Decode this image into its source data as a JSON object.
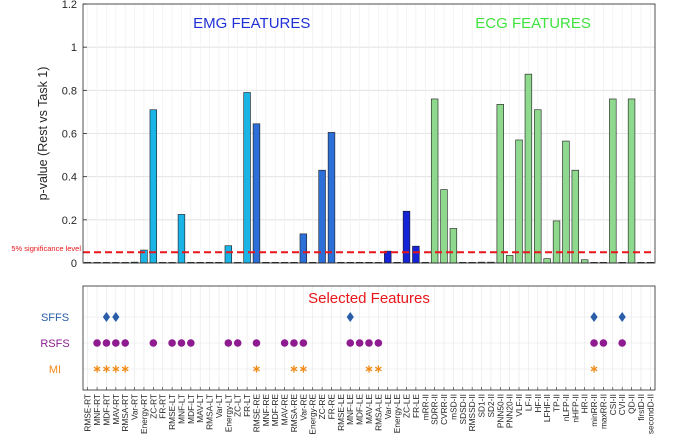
{
  "chart_data": {
    "type": "bar",
    "ylabel": "p-value (Rest vs Task 1)",
    "ylim": [
      0,
      1.2
    ],
    "yticks": [
      0,
      0.2,
      0.4,
      0.6,
      0.8,
      1,
      1.2
    ],
    "grid": true,
    "threshold": {
      "value": 0.05,
      "label": "5% significance level",
      "color": "#e8161b"
    },
    "group_labels": [
      {
        "text": "EMG FEATURES",
        "color": "#1f30d6"
      },
      {
        "text": "ECG FEATURES",
        "color": "#3fe23f"
      }
    ],
    "categories": [
      "RMSE-RT",
      "MNF-RT",
      "MDF-RT",
      "MAV-RT",
      "RMSA-RT",
      "Var-RT",
      "Energy-RT",
      "ZC-RT",
      "FR-RT",
      "RMSE-LT",
      "MNF-LT",
      "MDF-LT",
      "MAV-LT",
      "RMSA-LT",
      "Var-LT",
      "Energy-LT",
      "ZC-LT",
      "FR-LT",
      "RMSE-RE",
      "MNF-RE",
      "MDF-RE",
      "MAV-RE",
      "RMSA-RE",
      "Var-RE",
      "Energy-RE",
      "ZC-RE",
      "FR-RE",
      "RMSE-LE",
      "MNF-LE",
      "MDF-LE",
      "MAV-LE",
      "RMSA-LE",
      "Var-LE",
      "Energy-LE",
      "ZC-LE",
      "FR-LE",
      "mRR-II",
      "SDRR-II",
      "CVRR-II",
      "mSD-II",
      "SDSD-II",
      "RMSSD-II",
      "SD1-II",
      "SD2-II",
      "PNN50-II",
      "PNN20-II",
      "VLF-II",
      "LF-II",
      "HF-II",
      "LFHF-II",
      "TP-II",
      "nLFP-II",
      "nHFP-II",
      "HR-II",
      "minRR-II",
      "maxRR-II",
      "CSI-II",
      "CVI-II",
      "QD-II",
      "firstD-II",
      "secondD-II"
    ],
    "values": [
      0.001,
      0.001,
      0.001,
      0.001,
      0.001,
      0.004,
      0.06,
      0.71,
      0.002,
      0.001,
      0.225,
      0.003,
      0.003,
      0.003,
      0.003,
      0.08,
      0.001,
      0.79,
      0.645,
      0.003,
      0.003,
      0.003,
      0.003,
      0.135,
      0.003,
      0.43,
      0.605,
      0.003,
      0.003,
      0.003,
      0.003,
      0.002,
      0.055,
      0.003,
      0.24,
      0.078,
      0.003,
      0.76,
      0.34,
      0.16,
      0.003,
      0.003,
      0.004,
      0.004,
      0.735,
      0.035,
      0.57,
      0.875,
      0.71,
      0.02,
      0.195,
      0.565,
      0.43,
      0.015,
      0.003,
      0.003,
      0.76,
      0.003,
      0.76,
      0.003,
      0.003
    ],
    "bar_colors": [
      "#1bb4e6",
      "#1bb4e6",
      "#1bb4e6",
      "#1bb4e6",
      "#1bb4e6",
      "#1bb4e6",
      "#1bb4e6",
      "#1bb4e6",
      "#1bb4e6",
      "#1bb4e6",
      "#1bb4e6",
      "#1bb4e6",
      "#1bb4e6",
      "#1bb4e6",
      "#1bb4e6",
      "#1bb4e6",
      "#1bb4e6",
      "#1bb4e6",
      "#2d6fd9",
      "#2d6fd9",
      "#2d6fd9",
      "#2d6fd9",
      "#2d6fd9",
      "#2d6fd9",
      "#2d6fd9",
      "#2d6fd9",
      "#2d6fd9",
      "#1424d6",
      "#1424d6",
      "#1424d6",
      "#1424d6",
      "#1424d6",
      "#1424d6",
      "#1424d6",
      "#1424d6",
      "#1424d6",
      "#8ed98e",
      "#8ed98e",
      "#8ed98e",
      "#8ed98e",
      "#8ed98e",
      "#8ed98e",
      "#8ed98e",
      "#8ed98e",
      "#8ed98e",
      "#8ed98e",
      "#8ed98e",
      "#8ed98e",
      "#8ed98e",
      "#8ed98e",
      "#8ed98e",
      "#8ed98e",
      "#8ed98e",
      "#8ed98e",
      "#8ed98e",
      "#8ed98e",
      "#8ed98e",
      "#8ed98e",
      "#8ed98e",
      "#8ed98e",
      "#8ed98e"
    ],
    "selection": {
      "title": "Selected Features",
      "title_color": "#e8161b",
      "methods": [
        {
          "name": "SFFS",
          "label_color": "#2a5ea8",
          "marker": "diamond",
          "marker_color": "#2a5ea8",
          "features": [
            "MDF-RT",
            "MAV-RT",
            "MNF-LE",
            "minRR-II",
            "CVI-II"
          ]
        },
        {
          "name": "RSFS",
          "label_color": "#8b1e8f",
          "marker": "circle",
          "marker_color": "#8e1b8f",
          "features": [
            "MNF-RT",
            "MDF-RT",
            "MAV-RT",
            "RMSA-RT",
            "ZC-RT",
            "RMSE-LT",
            "MNF-LT",
            "MDF-LT",
            "Energy-LT",
            "ZC-LT",
            "RMSE-RE",
            "MAV-RE",
            "RMSA-RE",
            "Var-RE",
            "MNF-LE",
            "MDF-LE",
            "MAV-LE",
            "RMSA-LE",
            "minRR-II",
            "maxRR-II",
            "CVI-II"
          ]
        },
        {
          "name": "MI",
          "label_color": "#f08a16",
          "marker": "asterisk",
          "marker_color": "#f08a16",
          "features": [
            "MNF-RT",
            "MDF-RT",
            "MAV-RT",
            "RMSA-RT",
            "RMSE-RE",
            "RMSA-RE",
            "Var-RE",
            "MAV-LE",
            "RMSA-LE",
            "minRR-II"
          ]
        }
      ]
    }
  }
}
